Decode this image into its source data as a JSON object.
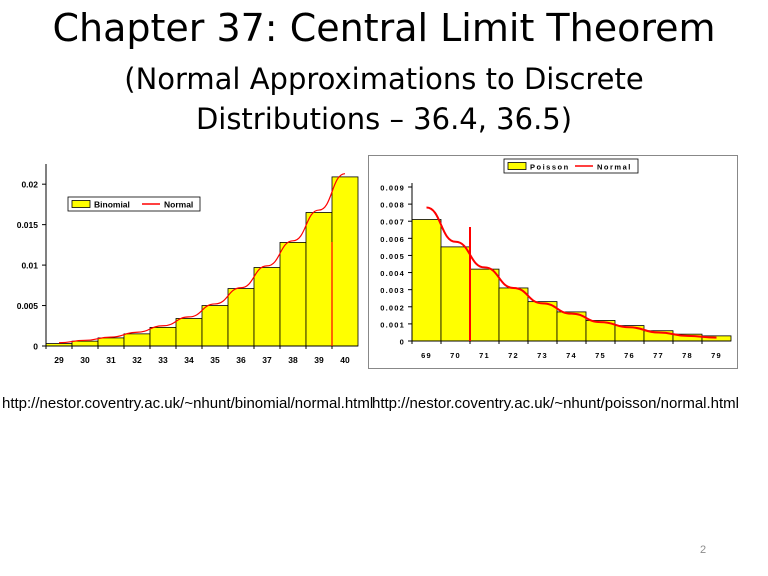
{
  "slide": {
    "title": "Chapter 37: Central Limit Theorem",
    "subtitle_line1": "(Normal Approximations to Discrete",
    "subtitle_line2": "Distributions – 36.4, 36.5)",
    "url_left": "http://nestor.coventry.ac.uk/~nhunt/binomial/normal.html",
    "url_right": "http://nestor.coventry.ac.uk/~nhunt/poisson/normal.html",
    "page_number": "2"
  },
  "chart_data": [
    {
      "type": "bar",
      "categories": [
        "29",
        "30",
        "31",
        "32",
        "33",
        "34",
        "35",
        "36",
        "37",
        "38",
        "39",
        "40"
      ],
      "series": [
        {
          "name": "Binomial",
          "values": [
            0.0003,
            0.0006,
            0.001,
            0.0015,
            0.0023,
            0.0034,
            0.005,
            0.0071,
            0.0097,
            0.0128,
            0.0165,
            0.0209
          ]
        },
        {
          "name": "Normal",
          "values": [
            0.0004,
            0.0007,
            0.0011,
            0.0017,
            0.0025,
            0.0036,
            0.0052,
            0.0072,
            0.0099,
            0.013,
            0.0168,
            0.0213
          ]
        }
      ],
      "yticks": [
        "0",
        "0.005",
        "0.01",
        "0.015",
        "0.02"
      ],
      "ylim": [
        0,
        0.022
      ],
      "marker_x": 39.5,
      "legend": "top-left",
      "bar_color": "#ffff00",
      "line_color": "#ff0000",
      "grid": false
    },
    {
      "type": "bar",
      "categories": [
        "69",
        "70",
        "71",
        "72",
        "73",
        "74",
        "75",
        "76",
        "77",
        "78",
        "79"
      ],
      "series": [
        {
          "name": "Poisson",
          "values": [
            0.0071,
            0.0055,
            0.0042,
            0.0031,
            0.0023,
            0.0017,
            0.0012,
            0.0009,
            0.0006,
            0.0004,
            0.0003
          ]
        },
        {
          "name": "Normal",
          "values": [
            0.0078,
            0.0058,
            0.0043,
            0.0031,
            0.0022,
            0.0016,
            0.0011,
            0.0008,
            0.0005,
            0.0003,
            0.0002
          ]
        }
      ],
      "yticks": [
        "0",
        "0.001",
        "0.002",
        "0.003",
        "0.004",
        "0.005",
        "0.006",
        "0.007",
        "0.008",
        "0.009"
      ],
      "ylim": [
        0,
        0.009
      ],
      "marker_x": 70.5,
      "legend": "top-right",
      "bar_color": "#ffff00",
      "line_color": "#ff0000",
      "grid": false
    }
  ]
}
